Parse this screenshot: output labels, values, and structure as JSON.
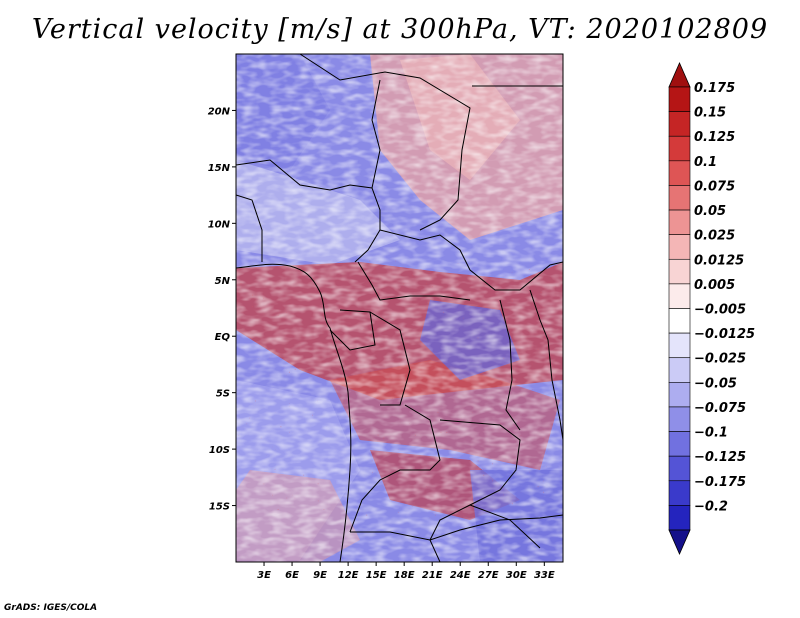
{
  "title": "Vertical velocity [m/s] at 300hPa, VT: 2020102809",
  "credit": "GrADS: IGES/COLA",
  "map": {
    "lon_range": [
      0,
      35
    ],
    "lat_range": [
      -20,
      25
    ],
    "y_ticks": [
      "20N",
      "15N",
      "10N",
      "5N",
      "EQ",
      "5S",
      "10S",
      "15S"
    ],
    "y_tick_values": [
      20,
      15,
      10,
      5,
      0,
      -5,
      -10,
      -15
    ],
    "x_ticks": [
      "3E",
      "6E",
      "9E",
      "12E",
      "15E",
      "18E",
      "21E",
      "24E",
      "27E",
      "30E",
      "33E"
    ],
    "x_tick_values": [
      3,
      6,
      9,
      12,
      15,
      18,
      21,
      24,
      27,
      30,
      33
    ]
  },
  "colorbar": {
    "labels": [
      "0.175",
      "0.15",
      "0.125",
      "0.1",
      "0.075",
      "0.05",
      "0.025",
      "0.0125",
      "0.005",
      "−0.005",
      "−0.0125",
      "−0.025",
      "−0.05",
      "−0.075",
      "−0.1",
      "−0.125",
      "−0.175",
      "−0.2"
    ],
    "colors": [
      "#b51515",
      "#c52525",
      "#d43a3a",
      "#de5555",
      "#e67474",
      "#ed9494",
      "#f4b6b6",
      "#f8d4d4",
      "#fcebeb",
      "#ffffff",
      "#e4e4fb",
      "#cbcbf6",
      "#adadf0",
      "#8f8fe8",
      "#7171e0",
      "#5454d6",
      "#3a3acb",
      "#2424be",
      "#1818a4"
    ],
    "top_color": "#a01010",
    "bottom_color": "#14108a"
  }
}
